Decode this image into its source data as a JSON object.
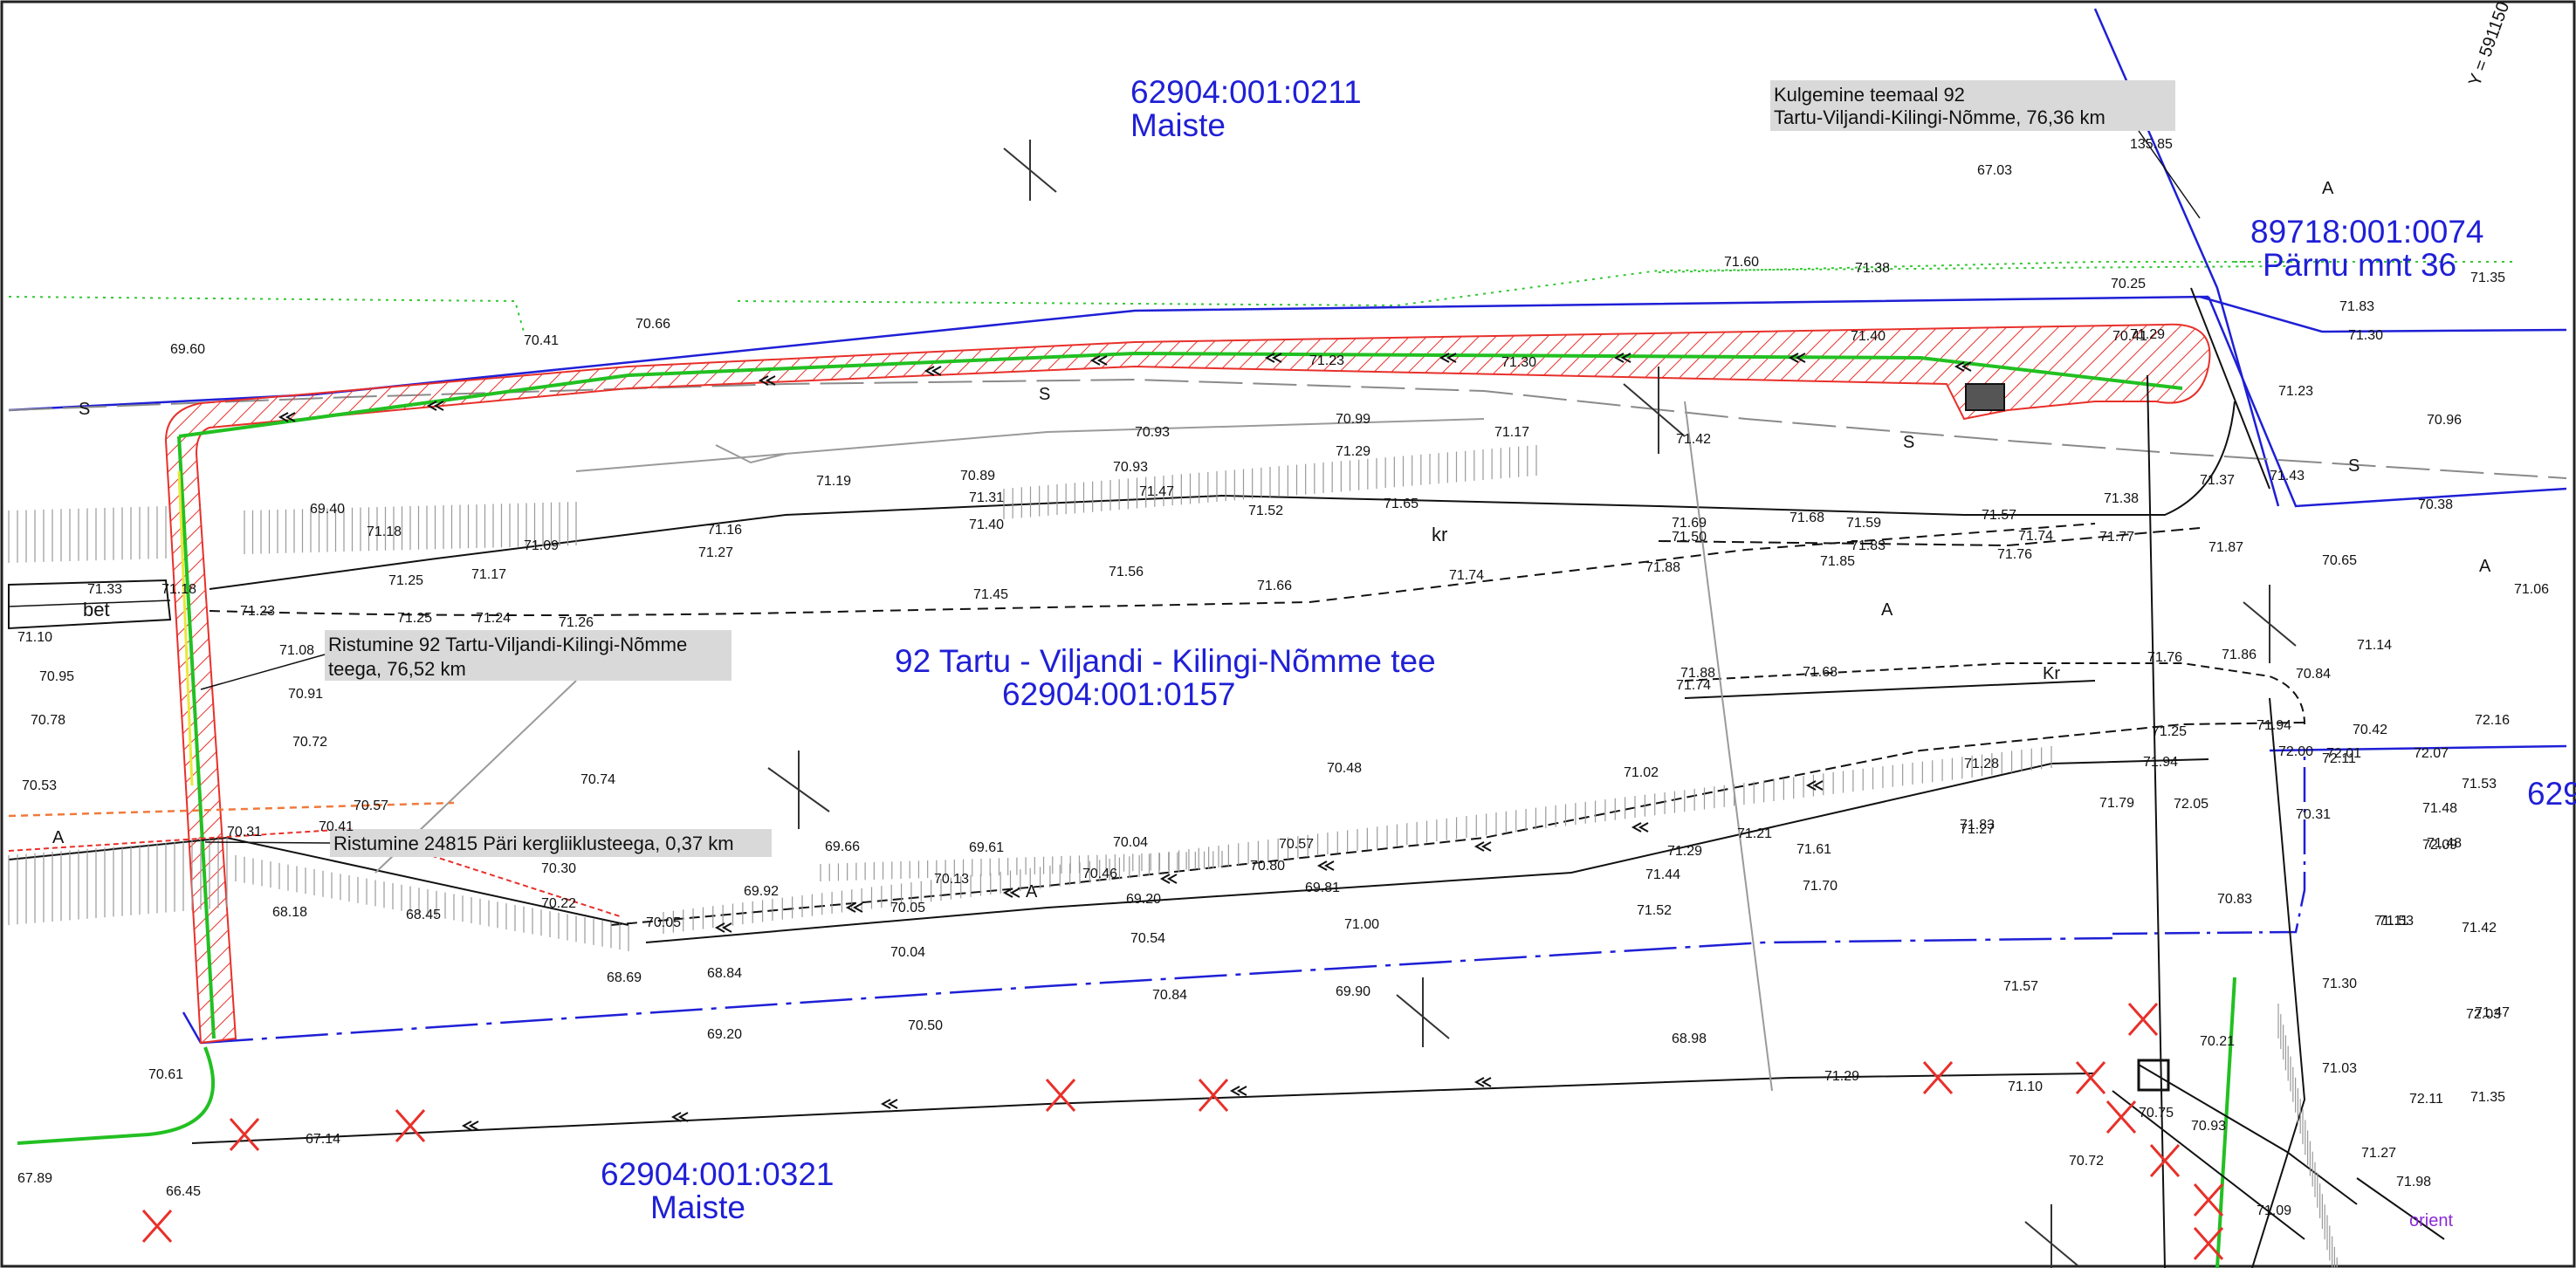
{
  "parcels": {
    "p0211": {
      "id": "62904:001:0211",
      "name": "Maiste"
    },
    "p0074": {
      "id": "89718:001:0074",
      "name": "Pärnu mnt 36"
    },
    "road": {
      "id": "92 Tartu - Viljandi - Kilingi-Nõmme tee",
      "code": "62904:001:0157"
    },
    "p0321": {
      "id": "62904:001:0321",
      "name": "Maiste"
    },
    "edge": {
      "id": "629"
    }
  },
  "notes": {
    "kulgemine_line1": "Kulgemine teemaal 92",
    "kulgemine_line2": "Tartu-Viljandi-Kilingi-Nõmme, 76,36 km",
    "ristumine92_line1": "Ristumine 92 Tartu-Viljandi-Kilingi-Nõmme",
    "ristumine92_line2": "teega, 76,52 km",
    "ristumine24815": "Ristumine 24815 Päri kergliiklusteega, 0,37 km"
  },
  "labels": {
    "bet": "bet",
    "kr": "kr",
    "A": "A",
    "S": "S",
    "kr_small": "Kr",
    "orient": "orient",
    "y_coord": "Y = 591150"
  },
  "elevations": [
    "69.60",
    "70.41",
    "70.66",
    "71.60",
    "71.38",
    "70.25",
    "70.41",
    "71.29",
    "71.40",
    "71.30",
    "71.23",
    "70.93",
    "70.99",
    "71.29",
    "71.17",
    "71.42",
    "71.19",
    "70.89",
    "71.31",
    "70.93",
    "71.47",
    "71.52",
    "71.65",
    "71.40",
    "71.16",
    "71.18",
    "71.09",
    "71.27",
    "71.25",
    "71.17",
    "71.23",
    "71.25",
    "71.24",
    "71.26",
    "71.45",
    "71.56",
    "71.66",
    "71.74",
    "71.69",
    "71.50",
    "71.88",
    "71.68",
    "71.59",
    "71.83",
    "71.85",
    "71.57",
    "71.74",
    "71.76",
    "71.77",
    "71.38",
    "71.37",
    "71.87",
    "69.40",
    "71.18",
    "71.10",
    "70.95",
    "70.78",
    "70.53",
    "71.08",
    "70.91",
    "70.72",
    "70.57",
    "70.31",
    "70.41",
    "70.74",
    "68.18",
    "68.45",
    "70.30",
    "70.22",
    "70.05",
    "68.69",
    "68.84",
    "69.66",
    "69.61",
    "69.92",
    "70.13",
    "70.04",
    "70.46",
    "70.57",
    "70.80",
    "70.05",
    "70.04",
    "69.20",
    "70.54",
    "69.81",
    "71.00",
    "70.48",
    "71.02",
    "71.29",
    "71.44",
    "71.52",
    "71.21",
    "71.61",
    "71.70",
    "71.27",
    "71.83",
    "71.28",
    "71.79",
    "71.94",
    "71.25",
    "71.88",
    "71.74",
    "71.68",
    "71.76",
    "71.86",
    "71.94",
    "72.00",
    "72.01",
    "72.07",
    "72.09",
    "72.16",
    "72.03",
    "72.11",
    "72.05",
    "71.48",
    "71.53",
    "71.11",
    "71.53",
    "71.57",
    "70.84",
    "69.90",
    "70.50",
    "69.20",
    "68.98",
    "71.29",
    "71.10",
    "70.75",
    "70.72",
    "70.61",
    "67.14",
    "67.89",
    "66.45",
    "67.03",
    "135.85",
    "70.21",
    "70.93",
    "71.09",
    "71.30",
    "70.96",
    "70.38",
    "71.06",
    "70.84",
    "72.11",
    "71.48",
    "71.42",
    "71.47",
    "71.35",
    "71.98",
    "71.83",
    "71.23",
    "71.43",
    "70.65",
    "71.14",
    "70.42",
    "70.31",
    "70.83",
    "71.30",
    "71.03",
    "71.27",
    "71.35",
    "71.33"
  ],
  "colors": {
    "parcel_label": "#1f1fd6",
    "boundary": "#1f1fd6",
    "hatch": "#e8302a",
    "cable": "#22c022",
    "green_dotted": "#35c735",
    "grey_line": "#8a8a8a",
    "cross": "#e8302a",
    "orange": "#f07a3c",
    "note_bg": "#d9d9d9"
  }
}
